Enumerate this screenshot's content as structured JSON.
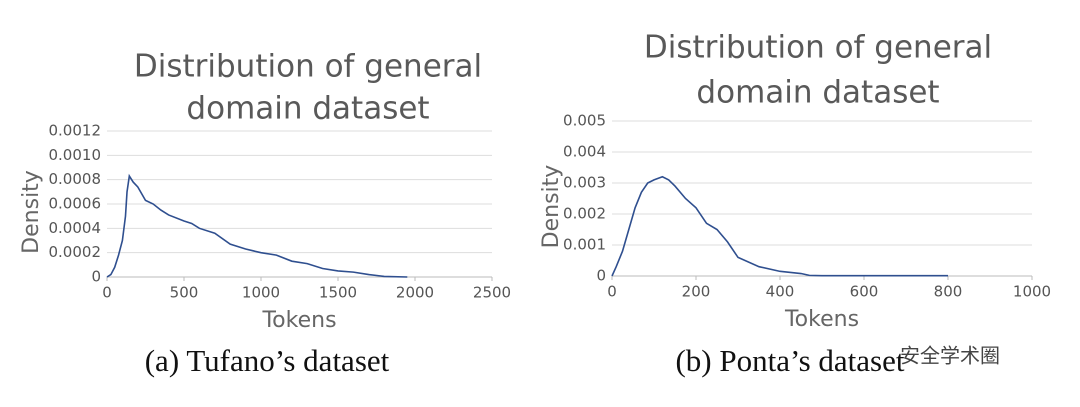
{
  "chart_data": [
    {
      "type": "line",
      "title_lines": [
        "Distribution of general",
        "domain dataset"
      ],
      "xlabel": "Tokens",
      "ylabel": "Density",
      "caption": "(a) Tufano’s dataset",
      "x": [
        0,
        25,
        50,
        75,
        100,
        120,
        130,
        145,
        170,
        200,
        250,
        300,
        350,
        400,
        500,
        550,
        600,
        700,
        800,
        900,
        1000,
        1100,
        1200,
        1300,
        1400,
        1500,
        1600,
        1700,
        1800,
        1950
      ],
      "series": [
        {
          "color": "#2f4f8f",
          "values": [
            0,
            2e-05,
            8e-05,
            0.00018,
            0.0003,
            0.0005,
            0.0007,
            0.00083,
            0.00078,
            0.00074,
            0.00063,
            0.0006,
            0.00055,
            0.00051,
            0.00046,
            0.00044,
            0.0004,
            0.00036,
            0.00027,
            0.00023,
            0.0002,
            0.00018,
            0.00013,
            0.00011,
            7e-05,
            5e-05,
            4e-05,
            2e-05,
            5e-06,
            0
          ]
        }
      ],
      "xlim": [
        0,
        2500
      ],
      "xticks": [
        0,
        500,
        1000,
        1500,
        2000,
        2500
      ],
      "ylim": [
        0,
        0.0012
      ],
      "yticks": [
        0,
        0.0002,
        0.0004,
        0.0006,
        0.0008,
        {
          "value": 0.001,
          "label": "0.0010"
        },
        0.0012
      ],
      "grid": true
    },
    {
      "type": "line",
      "title_lines": [
        "Distribution of general",
        "domain dataset"
      ],
      "xlabel": "Tokens",
      "ylabel": "Density",
      "caption": "(b) Ponta’s dataset",
      "x": [
        0,
        10,
        25,
        40,
        55,
        70,
        85,
        100,
        120,
        135,
        150,
        175,
        200,
        225,
        250,
        275,
        300,
        350,
        400,
        450,
        470,
        500,
        800
      ],
      "series": [
        {
          "color": "#2f4f8f",
          "values": [
            0,
            0.0003,
            0.0008,
            0.0015,
            0.0022,
            0.0027,
            0.003,
            0.0031,
            0.0032,
            0.0031,
            0.0029,
            0.0025,
            0.0022,
            0.0017,
            0.0015,
            0.0011,
            0.0006,
            0.0003,
            0.00015,
            8e-05,
            2e-05,
            1e-05,
            1e-05
          ]
        }
      ],
      "xlim": [
        0,
        1000
      ],
      "xticks": [
        0,
        200,
        400,
        600,
        800,
        1000
      ],
      "ylim": [
        0,
        0.005
      ],
      "yticks": [
        0,
        0.001,
        0.002,
        0.003,
        0.004,
        0.005
      ],
      "grid": true
    }
  ],
  "watermark": "安全学术圈"
}
